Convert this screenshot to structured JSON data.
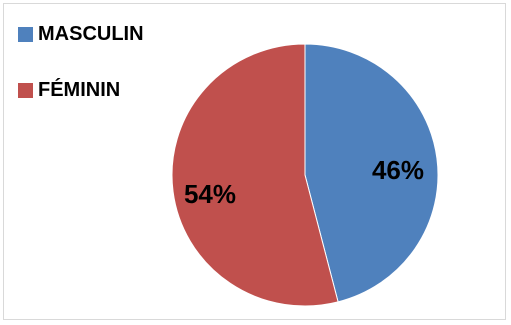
{
  "chart_data": {
    "type": "pie",
    "title": "",
    "legend_position": "top-left",
    "slices": [
      {
        "name": "MASCULIN",
        "value": 46,
        "label": "46%",
        "color": "#4f81bd"
      },
      {
        "name": "FÉMININ",
        "value": 54,
        "label": "54%",
        "color": "#c0504d"
      }
    ]
  }
}
